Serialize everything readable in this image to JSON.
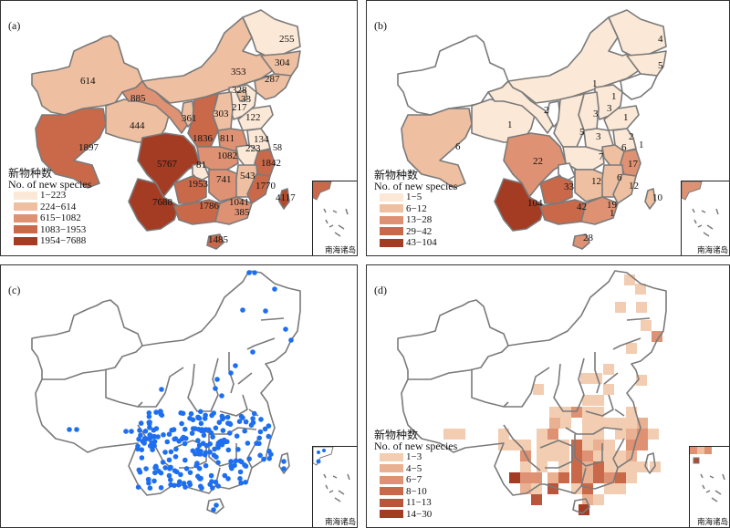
{
  "legend_title_cn": "新物种数",
  "legend_title_en": "No. of new species",
  "inset_caption": "南海诸岛",
  "colors": {
    "c1": "#fbe8d6",
    "c2": "#eebfa0",
    "c3": "#df9273",
    "c4": "#c9694a",
    "c5": "#b24a2e",
    "c6": "#a43c23",
    "border": "#7a7a7a",
    "dot": "#1e6ff0"
  },
  "panels": {
    "a": {
      "label": "(a)",
      "legend": [
        "1−223",
        "224−614",
        "615−1082",
        "1083−1953",
        "1954−7688"
      ],
      "values": {
        "heilongjiang": "255",
        "jilin": "304",
        "liaoning": "287",
        "neimenggu": "353",
        "beijing": "328",
        "tianjin": "33",
        "hebei": "217",
        "shanxi": "303",
        "shandong": "122",
        "xinjiang": "614",
        "gansu": "885",
        "qinghai": "444",
        "ningxia": "361",
        "shaanxi": "1836",
        "henan": "811",
        "jiangsu": "134",
        "anhui": "223",
        "shanghai": "58",
        "hubei": "1082",
        "zhejiang": "1842",
        "xizang": "1897",
        "sichuan": "5767",
        "chongqing": "81",
        "guizhou": "1953",
        "hunan": "741",
        "jiangxi": "543",
        "fujian": "1770",
        "taiwan": "4117",
        "yunnan": "7688",
        "guangxi": "1786",
        "guangdong": "1041",
        "hongkong": "385",
        "hainan": "1485"
      }
    },
    "b": {
      "label": "(b)",
      "legend": [
        "1−5",
        "6−12",
        "13−28",
        "29−42",
        "43−104"
      ],
      "values": {
        "heilongjiang": "4",
        "jilin": "5",
        "neimenggu": "1",
        "beijing": "1",
        "hebei": "3",
        "shanxi": "3",
        "shandong": "1",
        "qinghai": "1",
        "gansu": "2",
        "shaanxi": "5",
        "henan": "3",
        "jiangsu": "2",
        "anhui": "6",
        "shanghai": "1",
        "hubei": "7",
        "zhejiang": "17",
        "xizang": "6",
        "sichuan": "22",
        "guizhou": "33",
        "hunan": "12",
        "jiangxi": "6",
        "fujian": "12",
        "taiwan": "10",
        "yunnan": "104",
        "guangxi": "42",
        "guangdong": "19",
        "hongkong": "1",
        "hainan": "28"
      }
    },
    "c": {
      "label": "(c)"
    },
    "d": {
      "label": "(d)",
      "legend": [
        "1−3",
        "4−5",
        "6−7",
        "8−10",
        "11−13",
        "14−30"
      ]
    }
  }
}
